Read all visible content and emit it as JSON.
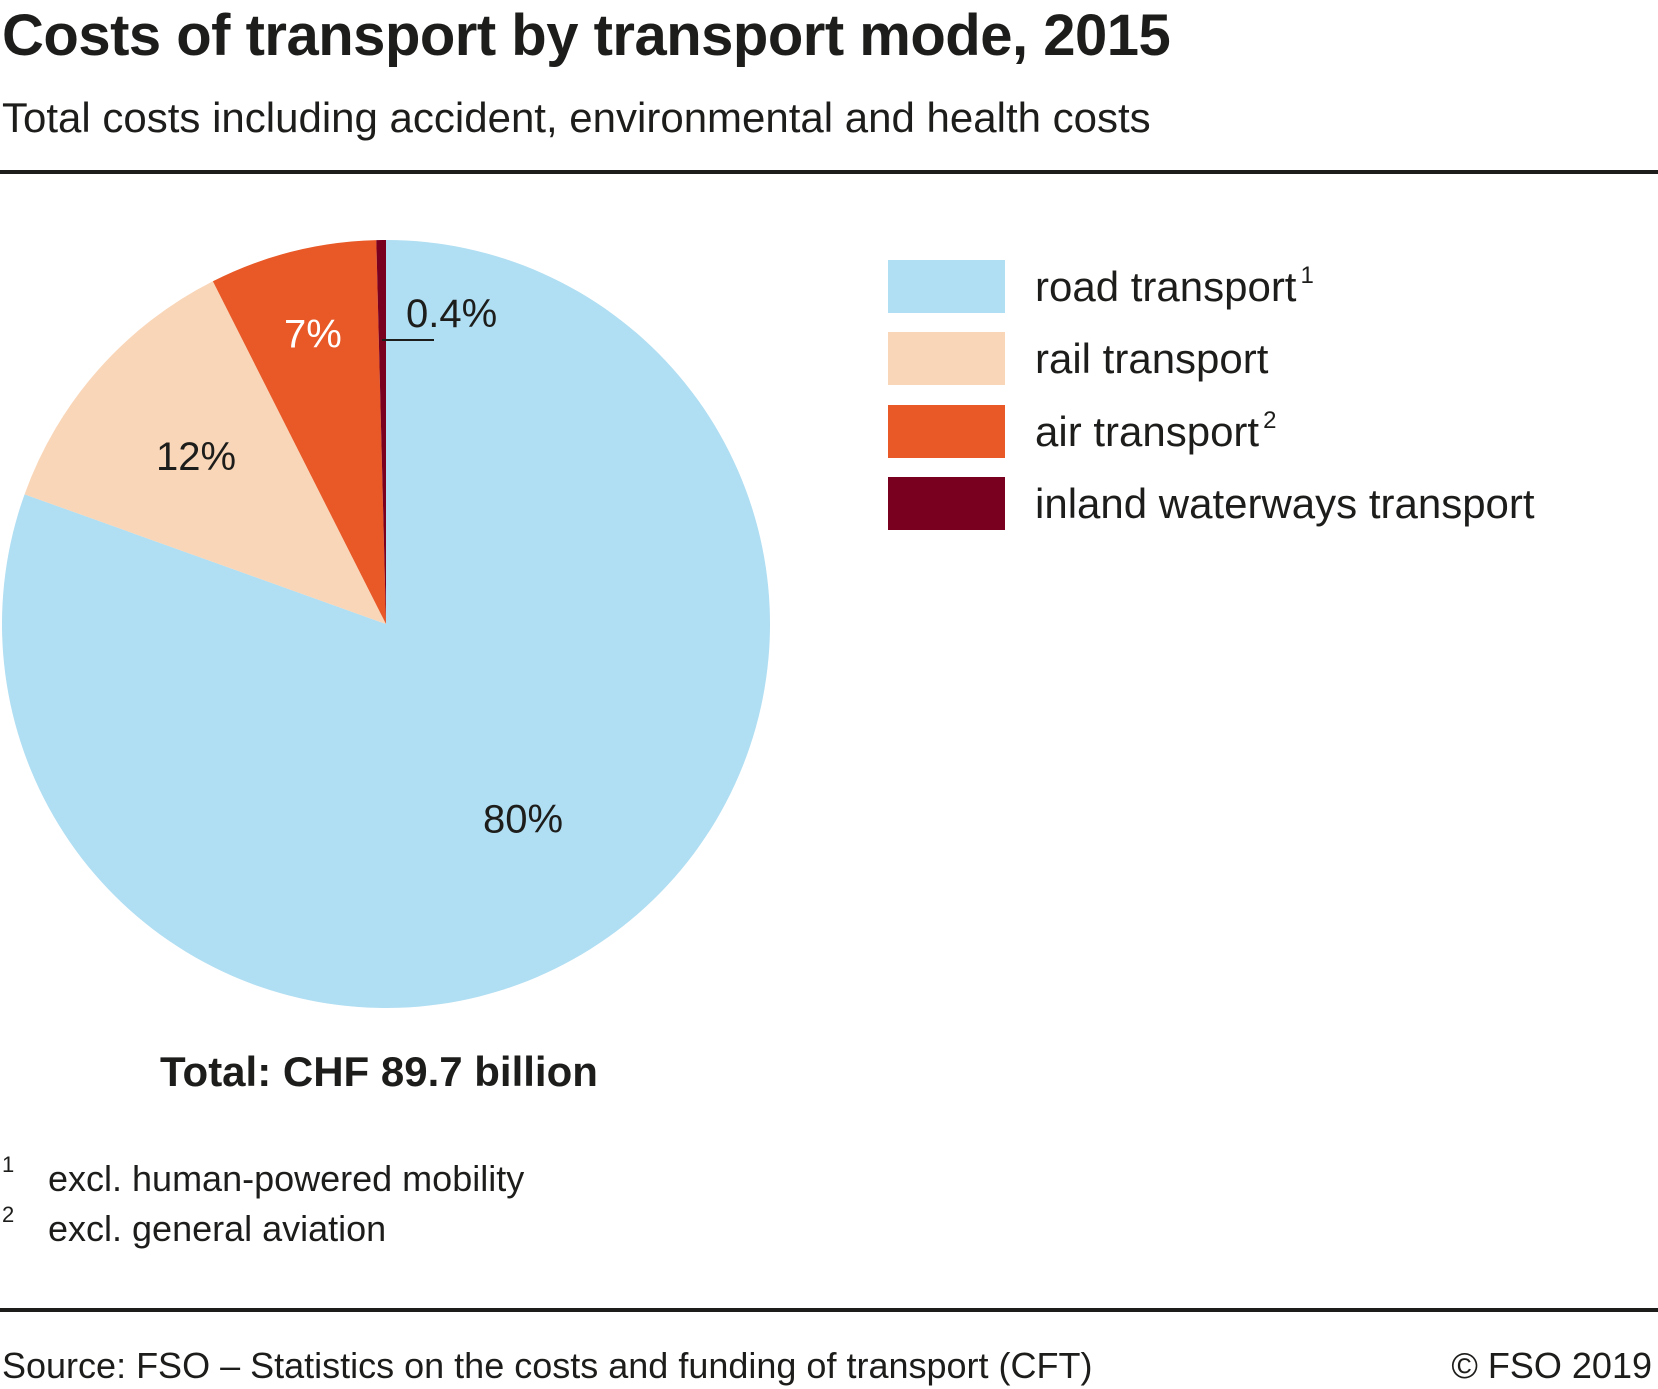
{
  "header": {
    "title": "Costs of transport by transport mode, 2015",
    "subtitle": "Total costs including accident, environmental and health costs"
  },
  "chart_data": {
    "type": "pie",
    "title": "Costs of transport by transport mode, 2015",
    "subtitle": "Total costs including accident, environmental and health costs",
    "start_angle": "12 o'clock",
    "direction": "clockwise",
    "slices": [
      {
        "label": "road transport",
        "footnote": "1",
        "value": 80,
        "display": "80%",
        "color": "#b0def2",
        "label_color": "#1d1d1b"
      },
      {
        "label": "rail transport",
        "footnote": "",
        "value": 12,
        "display": "12%",
        "color": "#f9d6b8",
        "label_color": "#1d1d1b"
      },
      {
        "label": "air transport",
        "footnote": "2",
        "value": 7,
        "display": "7%",
        "color": "#e85927",
        "label_color": "#ffffff"
      },
      {
        "label": "inland waterways transport",
        "footnote": "",
        "value": 0.4,
        "display": "0.4%",
        "color": "#7a0020",
        "label_color": "#1d1d1b"
      }
    ],
    "legend_position": "right",
    "total_label": "Total: CHF 89.7 billion",
    "total_value": 89.7,
    "total_unit": "CHF billion"
  },
  "legend": {
    "items": [
      {
        "label": "road transport",
        "sup": "1",
        "color": "#b0def2"
      },
      {
        "label": "rail transport",
        "sup": "",
        "color": "#f9d6b8"
      },
      {
        "label": "air transport",
        "sup": "2",
        "color": "#e85927"
      },
      {
        "label": "inland waterways transport",
        "sup": "",
        "color": "#7a0020"
      }
    ]
  },
  "total": "Total: CHF 89.7 billion",
  "footnotes": [
    {
      "num": "1",
      "text": "excl. human-powered mobility"
    },
    {
      "num": "2",
      "text": "excl. general aviation"
    }
  ],
  "footer": {
    "source": "Source: FSO – Statistics on the costs and funding of transport (CFT)",
    "copyright": "© FSO 2019"
  }
}
